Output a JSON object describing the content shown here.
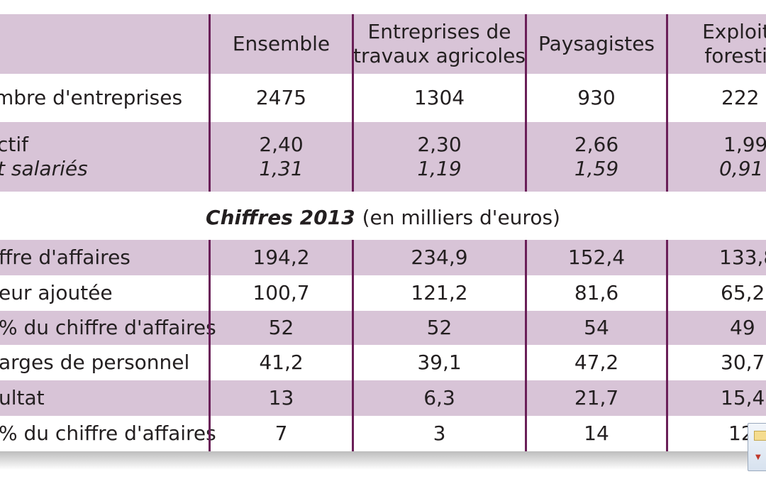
{
  "header": {
    "col0": "",
    "col1": "Ensemble",
    "col2_line1": "Entreprises de",
    "col2_line2": "travaux agricoles",
    "col3": "Paysagistes",
    "col4_line1": "Exploitat",
    "col4_line2": "forestièr"
  },
  "rows_top": [
    {
      "label": "mbre d'entreprises",
      "v": [
        "2475",
        "1304",
        "930",
        "222"
      ]
    },
    {
      "label": "ctif",
      "label2": "t salariés",
      "v": [
        "2,40",
        "2,30",
        "2,66",
        "1,99"
      ],
      "v2": [
        "1,31",
        "1,19",
        "1,59",
        "0,91"
      ]
    }
  ],
  "section": {
    "title_em": "Chiffres 2013",
    "title_rest": "(en milliers d'euros)"
  },
  "rows_bottom": [
    {
      "label": "ffre d'affaires",
      "v": [
        "194,2",
        "234,9",
        "152,4",
        "133,8"
      ]
    },
    {
      "label": "eur ajoutée",
      "v": [
        "100,7",
        "121,2",
        "81,6",
        "65,2"
      ]
    },
    {
      "label": "% du chiffre d'affaires",
      "v": [
        "52",
        "52",
        "54",
        "49"
      ]
    },
    {
      "label": "arges de personnel",
      "v": [
        "41,2",
        "39,1",
        "47,2",
        "30,7"
      ]
    },
    {
      "label": "ultat",
      "v": [
        "13",
        "6,3",
        "21,7",
        "15,4"
      ]
    },
    {
      "label": "% du chiffre d'affaires",
      "v": [
        "7",
        "3",
        "14",
        "12"
      ]
    }
  ],
  "colors": {
    "band": "#d8c4d7",
    "rule": "#6a1f58"
  }
}
